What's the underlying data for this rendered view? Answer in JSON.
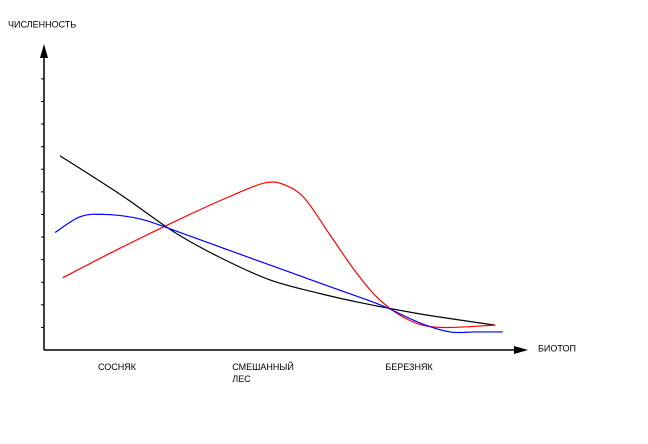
{
  "chart_data": {
    "type": "line",
    "y_label": "ЧИСЛЕННОСТЬ",
    "x_label": "БИОТОП",
    "categories": [
      "СОСНЯК",
      "СМЕШАННЫЙ\nЛЕС",
      "БЕРЕЗНЯК"
    ],
    "xlim": [
      0,
      100
    ],
    "ylim": [
      0,
      13.5
    ],
    "yticks": [
      1,
      2,
      3,
      4,
      5,
      6,
      7,
      8,
      9,
      10,
      11,
      12
    ],
    "series": [
      {
        "color": "#000000",
        "x": [
          3.3,
          15.7,
          27.1,
          36.4,
          46.8,
          57.1,
          65.4,
          77.8,
          93.4
        ],
        "values": [
          8.6,
          6.9,
          5.2,
          4.1,
          3.1,
          2.5,
          2.1,
          1.6,
          1.1
        ]
      },
      {
        "color": "#ff0000",
        "x": [
          3.9,
          15.7,
          28.2,
          38.5,
          45.8,
          49.9,
          54.0,
          59.2,
          64.4,
          69.6,
          75.8,
          82.0,
          93.4
        ],
        "values": [
          3.2,
          4.5,
          5.8,
          6.8,
          7.4,
          7.3,
          6.7,
          5.1,
          3.5,
          2.2,
          1.3,
          1.0,
          1.1
        ]
      },
      {
        "color": "#0000ff",
        "x": [
          2.3,
          7.5,
          12.6,
          19.9,
          28.2,
          38.5,
          48.9,
          59.2,
          69.6,
          77.8,
          84.1,
          89.2,
          95.0
        ],
        "values": [
          5.2,
          5.9,
          6.0,
          5.8,
          5.2,
          4.4,
          3.6,
          2.8,
          2.0,
          1.2,
          0.8,
          0.8,
          0.8
        ]
      }
    ]
  }
}
